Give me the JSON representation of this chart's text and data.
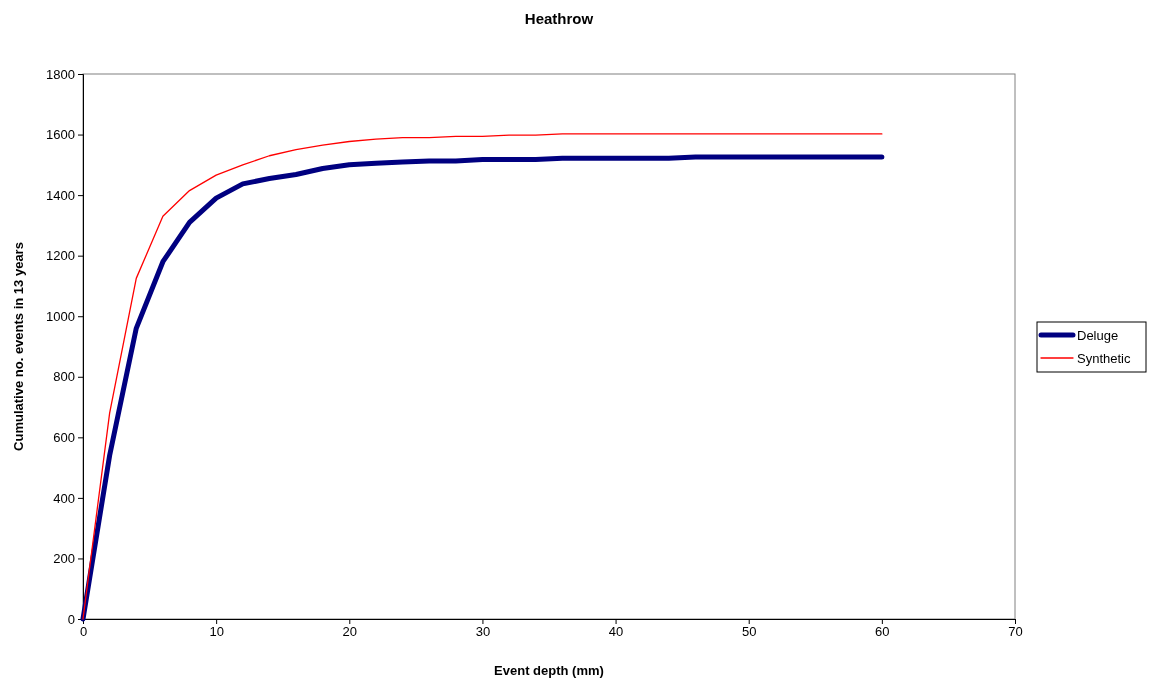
{
  "chart_data": {
    "type": "line",
    "title": "Heathrow",
    "xlabel": "Event depth (mm)",
    "ylabel": "Cumulative no. events in 13 years",
    "x": [
      0,
      2,
      4,
      6,
      8,
      10,
      12,
      14,
      16,
      18,
      20,
      22,
      24,
      26,
      28,
      30,
      32,
      34,
      36,
      38,
      40,
      42,
      44,
      46,
      48,
      50,
      52,
      54,
      56,
      58,
      60
    ],
    "series": [
      {
        "name": "Deluge",
        "color": "#000080",
        "values": [
          0,
          540,
          960,
          1180,
          1310,
          1390,
          1437,
          1455,
          1468,
          1488,
          1500,
          1505,
          1509,
          1513,
          1513,
          1518,
          1518,
          1518,
          1522,
          1522,
          1522,
          1522,
          1522,
          1526,
          1526,
          1526,
          1526,
          1526,
          1526,
          1526,
          1526
        ]
      },
      {
        "name": "Synthetic",
        "color": "#ff0000",
        "values": [
          0,
          680,
          1125,
          1330,
          1415,
          1466,
          1500,
          1530,
          1550,
          1565,
          1577,
          1585,
          1590,
          1590,
          1594,
          1594,
          1598,
          1598,
          1602,
          1602,
          1602,
          1602,
          1602,
          1602,
          1602,
          1602,
          1602,
          1602,
          1602,
          1602,
          1602
        ]
      }
    ],
    "xlim": [
      0,
      70
    ],
    "xticks": [
      0,
      10,
      20,
      30,
      40,
      50,
      60,
      70
    ],
    "ylim": [
      0,
      1800
    ],
    "yticks": [
      0,
      200,
      400,
      600,
      800,
      1000,
      1200,
      1400,
      1600,
      1800
    ],
    "legend": "right",
    "grid": false,
    "marker": "none",
    "line_style": "solid"
  }
}
